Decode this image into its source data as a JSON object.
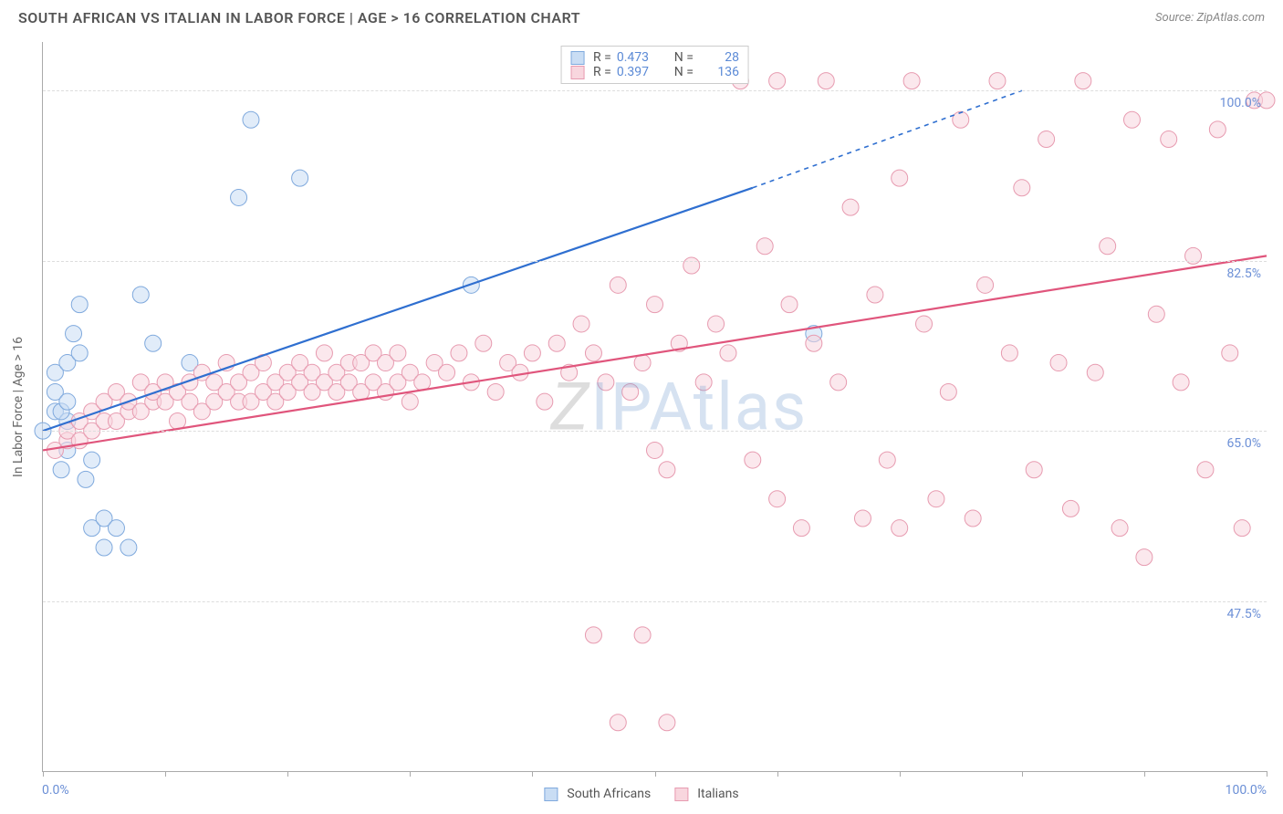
{
  "header": {
    "title": "SOUTH AFRICAN VS ITALIAN IN LABOR FORCE | AGE > 16 CORRELATION CHART",
    "source_prefix": "Source: ",
    "source": "ZipAtlas.com"
  },
  "chart": {
    "type": "scatter",
    "y_axis_title": "In Labor Force | Age > 16",
    "xlim": [
      0,
      100
    ],
    "ylim": [
      30,
      105
    ],
    "x_ticks": [
      0,
      10,
      20,
      30,
      40,
      50,
      60,
      70,
      80,
      90,
      100
    ],
    "x_label_min": "0.0%",
    "x_label_max": "100.0%",
    "y_gridlines": [
      {
        "v": 47.5,
        "label": "47.5%"
      },
      {
        "v": 65.0,
        "label": "65.0%"
      },
      {
        "v": 82.5,
        "label": "82.5%"
      },
      {
        "v": 100.0,
        "label": "100.0%"
      }
    ],
    "background_color": "#ffffff",
    "grid_color": "#dddddd",
    "axis_color": "#aaaaaa",
    "label_color": "#6b8fd6",
    "series": [
      {
        "key": "south_africans",
        "label": "South Africans",
        "fill": "#c9ddf4",
        "stroke": "#7fa9dd",
        "line_color": "#2f6fd0",
        "marker_r": 9,
        "R": "0.473",
        "N": "28",
        "trend": {
          "x1": 0,
          "y1": 65,
          "x2": 58,
          "y2": 90,
          "x2_dash": 80,
          "y2_dash": 100
        },
        "points": [
          [
            1,
            67
          ],
          [
            1,
            69
          ],
          [
            0,
            65
          ],
          [
            2,
            66
          ],
          [
            2,
            63
          ],
          [
            1.5,
            61
          ],
          [
            1,
            71
          ],
          [
            2,
            72
          ],
          [
            2.5,
            75
          ],
          [
            3,
            73
          ],
          [
            3,
            78
          ],
          [
            3.5,
            60
          ],
          [
            4,
            62
          ],
          [
            4,
            55
          ],
          [
            5,
            56
          ],
          [
            5,
            53
          ],
          [
            6,
            55
          ],
          [
            7,
            53
          ],
          [
            8,
            79
          ],
          [
            9,
            74
          ],
          [
            12,
            72
          ],
          [
            17,
            97
          ],
          [
            16,
            89
          ],
          [
            21,
            91
          ],
          [
            35,
            80
          ],
          [
            63,
            75
          ],
          [
            1.5,
            67
          ],
          [
            2,
            68
          ]
        ]
      },
      {
        "key": "italians",
        "label": "Italians",
        "fill": "#f8d6de",
        "stroke": "#e79bb0",
        "line_color": "#e0557c",
        "marker_r": 9,
        "R": "0.397",
        "N": "136",
        "trend": {
          "x1": 0,
          "y1": 63,
          "x2": 100,
          "y2": 83
        },
        "points": [
          [
            1,
            63
          ],
          [
            2,
            64
          ],
          [
            2,
            65
          ],
          [
            3,
            64
          ],
          [
            3,
            66
          ],
          [
            4,
            65
          ],
          [
            4,
            67
          ],
          [
            5,
            66
          ],
          [
            5,
            68
          ],
          [
            6,
            66
          ],
          [
            6,
            69
          ],
          [
            7,
            67
          ],
          [
            7,
            68
          ],
          [
            8,
            67
          ],
          [
            8,
            70
          ],
          [
            9,
            68
          ],
          [
            9,
            69
          ],
          [
            10,
            68
          ],
          [
            10,
            70
          ],
          [
            11,
            66
          ],
          [
            11,
            69
          ],
          [
            12,
            68
          ],
          [
            12,
            70
          ],
          [
            13,
            67
          ],
          [
            13,
            71
          ],
          [
            14,
            68
          ],
          [
            14,
            70
          ],
          [
            15,
            69
          ],
          [
            15,
            72
          ],
          [
            16,
            68
          ],
          [
            16,
            70
          ],
          [
            17,
            68
          ],
          [
            17,
            71
          ],
          [
            18,
            69
          ],
          [
            18,
            72
          ],
          [
            19,
            68
          ],
          [
            19,
            70
          ],
          [
            20,
            69
          ],
          [
            20,
            71
          ],
          [
            21,
            70
          ],
          [
            21,
            72
          ],
          [
            22,
            69
          ],
          [
            22,
            71
          ],
          [
            23,
            70
          ],
          [
            23,
            73
          ],
          [
            24,
            69
          ],
          [
            24,
            71
          ],
          [
            25,
            70
          ],
          [
            25,
            72
          ],
          [
            26,
            69
          ],
          [
            26,
            72
          ],
          [
            27,
            70
          ],
          [
            27,
            73
          ],
          [
            28,
            69
          ],
          [
            28,
            72
          ],
          [
            29,
            70
          ],
          [
            29,
            73
          ],
          [
            30,
            68
          ],
          [
            30,
            71
          ],
          [
            31,
            70
          ],
          [
            32,
            72
          ],
          [
            33,
            71
          ],
          [
            34,
            73
          ],
          [
            35,
            70
          ],
          [
            36,
            74
          ],
          [
            37,
            69
          ],
          [
            38,
            72
          ],
          [
            39,
            71
          ],
          [
            40,
            73
          ],
          [
            41,
            68
          ],
          [
            42,
            74
          ],
          [
            43,
            71
          ],
          [
            44,
            76
          ],
          [
            45,
            73
          ],
          [
            46,
            70
          ],
          [
            47,
            80
          ],
          [
            48,
            69
          ],
          [
            49,
            72
          ],
          [
            50,
            63
          ],
          [
            50,
            78
          ],
          [
            51,
            61
          ],
          [
            52,
            74
          ],
          [
            53,
            82
          ],
          [
            54,
            70
          ],
          [
            55,
            76
          ],
          [
            56,
            73
          ],
          [
            57,
            101
          ],
          [
            58,
            62
          ],
          [
            59,
            84
          ],
          [
            60,
            58
          ],
          [
            60,
            101
          ],
          [
            61,
            78
          ],
          [
            62,
            55
          ],
          [
            63,
            74
          ],
          [
            64,
            101
          ],
          [
            65,
            70
          ],
          [
            66,
            88
          ],
          [
            67,
            56
          ],
          [
            68,
            79
          ],
          [
            69,
            62
          ],
          [
            70,
            91
          ],
          [
            70,
            55
          ],
          [
            71,
            101
          ],
          [
            72,
            76
          ],
          [
            73,
            58
          ],
          [
            74,
            69
          ],
          [
            75,
            97
          ],
          [
            76,
            56
          ],
          [
            77,
            80
          ],
          [
            78,
            101
          ],
          [
            79,
            73
          ],
          [
            80,
            90
          ],
          [
            81,
            61
          ],
          [
            82,
            95
          ],
          [
            83,
            72
          ],
          [
            84,
            57
          ],
          [
            85,
            101
          ],
          [
            86,
            71
          ],
          [
            87,
            84
          ],
          [
            88,
            55
          ],
          [
            89,
            97
          ],
          [
            90,
            52
          ],
          [
            91,
            77
          ],
          [
            92,
            95
          ],
          [
            93,
            70
          ],
          [
            94,
            83
          ],
          [
            95,
            61
          ],
          [
            96,
            96
          ],
          [
            97,
            73
          ],
          [
            98,
            55
          ],
          [
            99,
            99
          ],
          [
            100,
            99
          ],
          [
            47,
            35
          ],
          [
            51,
            35
          ],
          [
            45,
            44
          ],
          [
            49,
            44
          ]
        ]
      }
    ],
    "legend_top": {
      "r_label": "R =",
      "n_label": "N ="
    },
    "legend_bottom": {},
    "watermark": {
      "z": "Z",
      "rest": "IPAtlas"
    }
  }
}
